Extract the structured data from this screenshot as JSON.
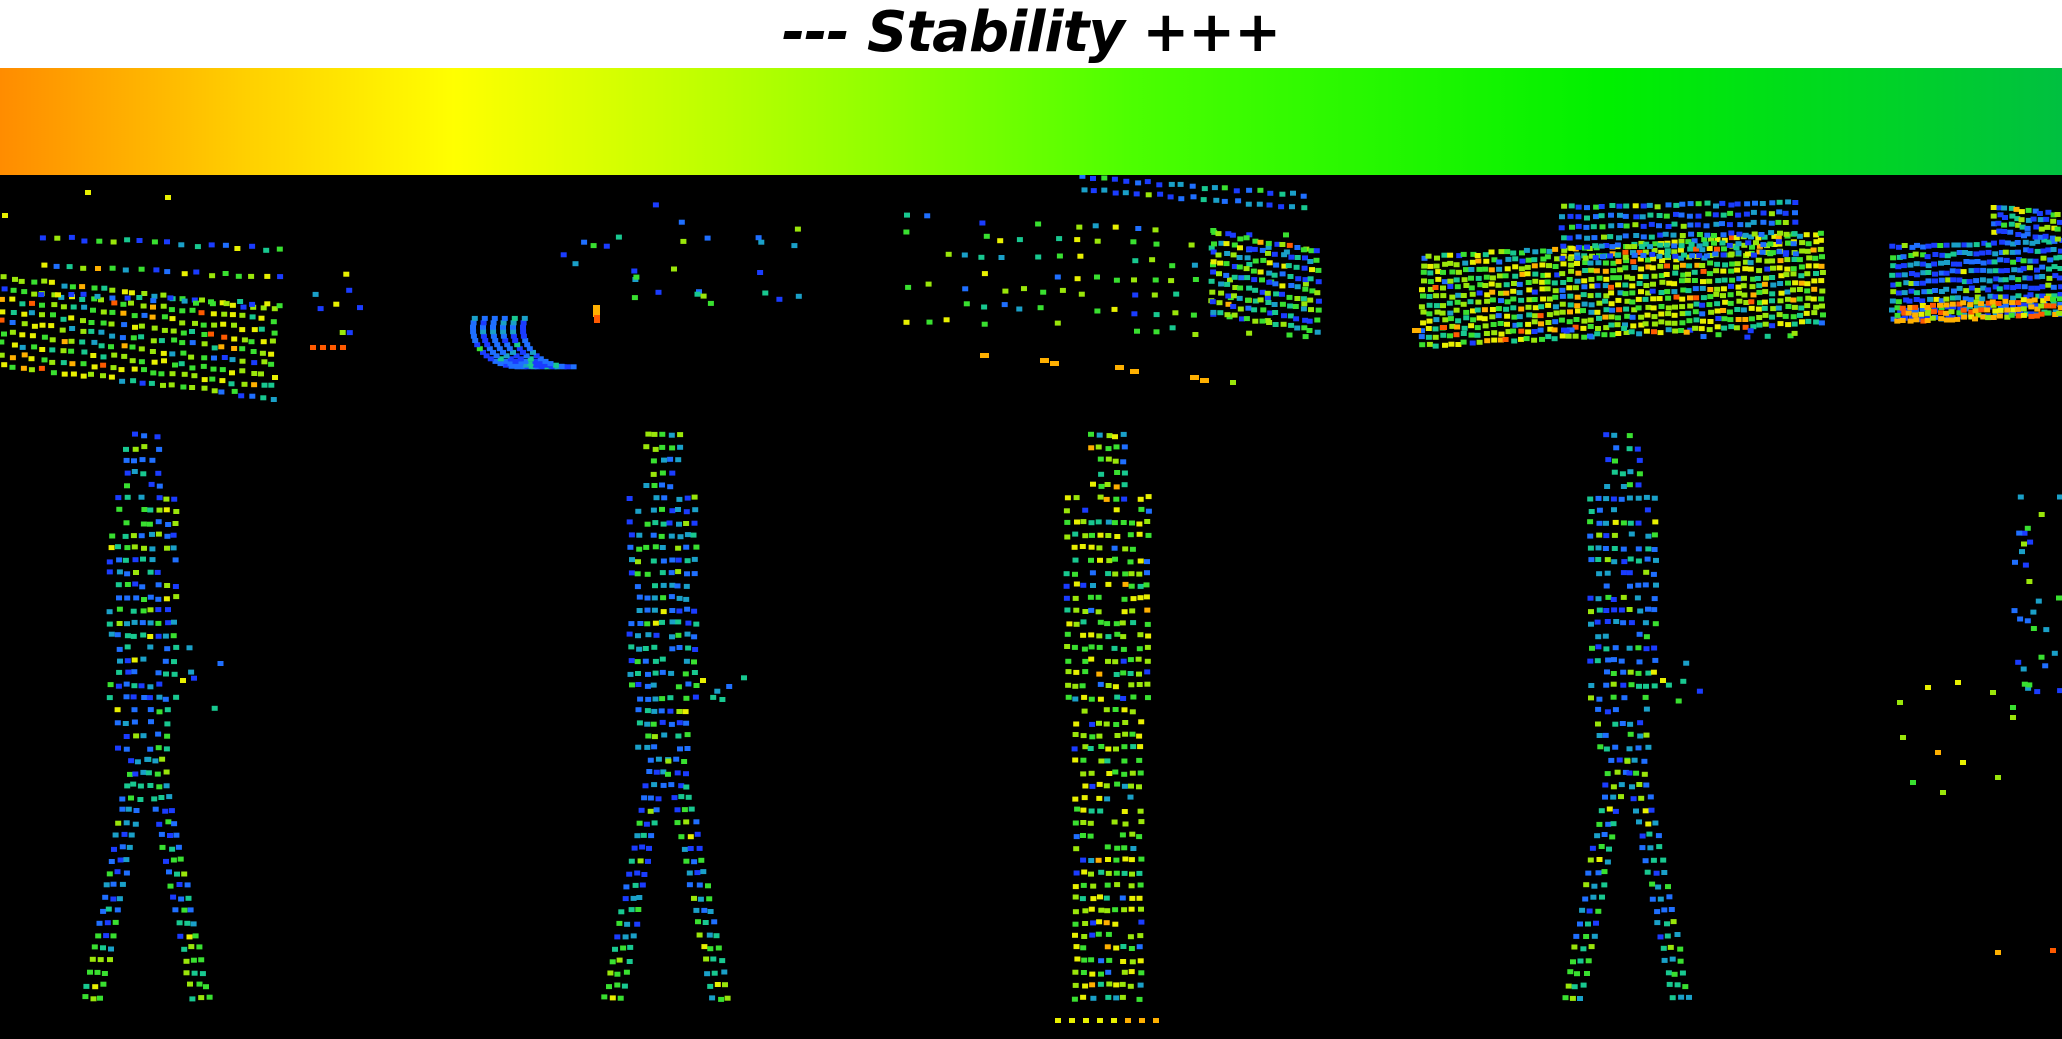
{
  "figure": {
    "title": "--- Stability  +++",
    "colorbar_gradient": [
      "#ff8c00",
      "#ffd000",
      "#ffff00",
      "#b5ff00",
      "#4cff00",
      "#00f000",
      "#00c040"
    ],
    "point_palette": [
      "#1a3cff",
      "#1f6fff",
      "#1aa0c8",
      "#18c890",
      "#39e030",
      "#9ae60a",
      "#e8f000",
      "#ffb000",
      "#ff5a00"
    ],
    "rows": [
      {
        "category": "vehicle",
        "panels": [
          {
            "shape": "vehicle-partial-left"
          },
          {
            "shape": "vehicle-partial-arc"
          },
          {
            "shape": "vehicle-sparse"
          },
          {
            "shape": "vehicle-dense"
          },
          {
            "shape": "vehicle-cropped"
          }
        ]
      },
      {
        "category": "pedestrian",
        "panels": [
          {
            "shape": "pedestrian-walking"
          },
          {
            "shape": "pedestrian-walking"
          },
          {
            "shape": "pedestrian-standing"
          },
          {
            "shape": "pedestrian-walking"
          },
          {
            "shape": "pedestrian-cropped"
          }
        ]
      }
    ]
  }
}
